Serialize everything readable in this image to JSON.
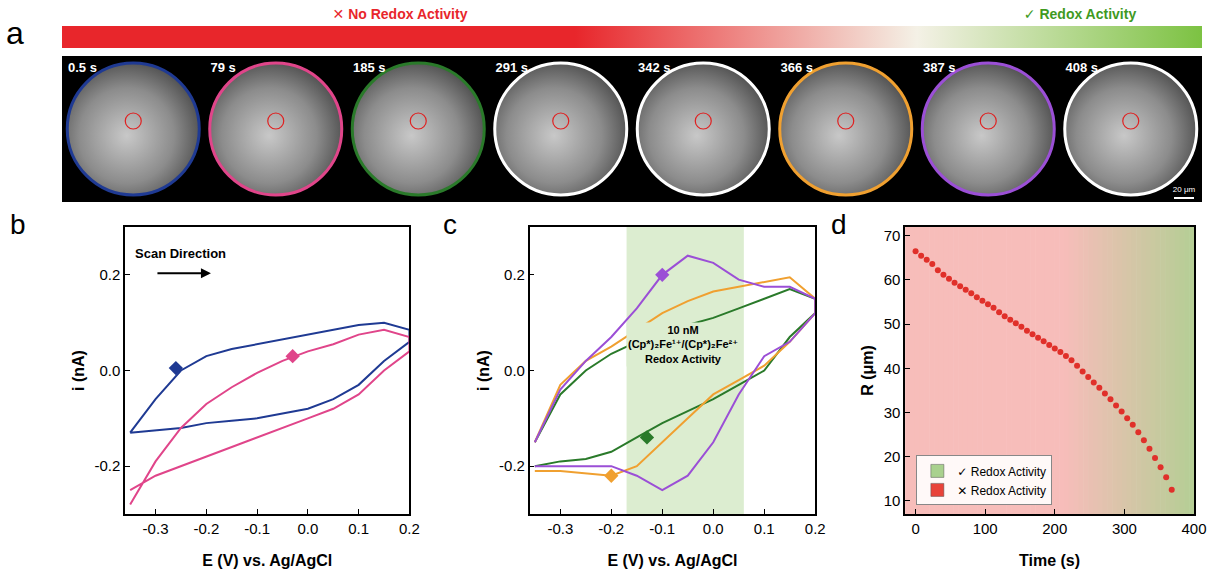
{
  "panel_a": {
    "letter": "a",
    "banner": {
      "left": "✕ No Redox Activity",
      "right": "✓ Redox Activity",
      "left_color": "#e8262b",
      "right_color": "#7cc242"
    },
    "frames": [
      {
        "time": "0.5 s",
        "color": "#1f3a93"
      },
      {
        "time": "79 s",
        "color": "#e0458a"
      },
      {
        "time": "185 s",
        "color": "#2a7a2a"
      },
      {
        "time": "291 s",
        "color": "#ffffff"
      },
      {
        "time": "342 s",
        "color": "#ffffff"
      },
      {
        "time": "366 s",
        "color": "#f0a030"
      },
      {
        "time": "387 s",
        "color": "#9b4fd6"
      },
      {
        "time": "408 s",
        "color": "#ffffff"
      }
    ],
    "scale_bar": "20 μm"
  },
  "chart_data": [
    {
      "letter": "b",
      "type": "line",
      "x_label": "E (V) vs. Ag/AgCl",
      "y_label": "i (nA)",
      "xlim": [
        -0.36,
        0.2
      ],
      "xticks": [
        -0.3,
        -0.2,
        -0.1,
        {
          "value": 0,
          "label": "0.0"
        },
        0.1,
        0.2
      ],
      "ylim": [
        -0.3,
        0.3
      ],
      "yticks": [
        -0.2,
        {
          "value": 0,
          "label": "0.0"
        },
        0.2
      ],
      "annotations": [
        {
          "text": "Scan Direction",
          "x": -0.25,
          "y": 0.245
        }
      ],
      "series": [
        {
          "color": "#1f3a93",
          "marker": "diamond",
          "marker_point": [
            -0.26,
            0.005
          ],
          "x": [
            -0.35,
            -0.3,
            -0.25,
            -0.2,
            -0.15,
            -0.1,
            -0.05,
            0,
            0.05,
            0.1,
            0.15,
            0.2,
            0.2,
            0.15,
            0.1,
            0.05,
            0,
            -0.05,
            -0.1,
            -0.15,
            -0.2,
            -0.25,
            -0.3,
            -0.35
          ],
          "values": [
            -0.13,
            -0.06,
            0.0,
            0.03,
            0.045,
            0.055,
            0.065,
            0.075,
            0.085,
            0.095,
            0.1,
            0.085,
            0.06,
            0.02,
            -0.03,
            -0.06,
            -0.08,
            -0.09,
            -0.1,
            -0.105,
            -0.11,
            -0.12,
            -0.125,
            -0.13
          ]
        },
        {
          "color": "#e0458a",
          "marker": "diamond",
          "marker_point": [
            -0.03,
            0.03
          ],
          "x": [
            -0.35,
            -0.3,
            -0.25,
            -0.2,
            -0.15,
            -0.1,
            -0.05,
            0,
            0.05,
            0.1,
            0.15,
            0.2,
            0.2,
            0.15,
            0.1,
            0.05,
            0,
            -0.05,
            -0.1,
            -0.15,
            -0.2,
            -0.25,
            -0.3,
            -0.35
          ],
          "values": [
            -0.28,
            -0.19,
            -0.12,
            -0.07,
            -0.035,
            -0.005,
            0.02,
            0.04,
            0.055,
            0.075,
            0.085,
            0.07,
            0.04,
            0.0,
            -0.05,
            -0.08,
            -0.1,
            -0.12,
            -0.14,
            -0.16,
            -0.18,
            -0.2,
            -0.22,
            -0.25
          ]
        }
      ]
    },
    {
      "letter": "c",
      "type": "line",
      "x_label": "E (V) vs. Ag/AgCl",
      "y_label": "i (nA)",
      "xlim": [
        -0.36,
        0.2
      ],
      "xticks": [
        -0.3,
        -0.2,
        -0.1,
        {
          "value": 0,
          "label": "0.0"
        },
        0.1,
        0.2
      ],
      "ylim": [
        -0.3,
        0.3
      ],
      "yticks": [
        -0.2,
        {
          "value": 0,
          "label": "0.0"
        },
        0.2
      ],
      "highlight": {
        "x": [
          -0.17,
          0.06
        ],
        "color": "#dcedd0"
      },
      "annotations": [
        {
          "text": [
            "10 nM",
            "(Cp*)₂Fe¹⁺/(Cp*)₂Fe²⁺",
            "Redox Activity"
          ],
          "x": -0.06,
          "y": 0.055
        }
      ],
      "series": [
        {
          "color": "#2a7a2a",
          "marker": "diamond",
          "marker_point": [
            -0.13,
            -0.14
          ],
          "x": [
            -0.35,
            -0.3,
            -0.25,
            -0.2,
            -0.15,
            -0.1,
            -0.05,
            0,
            0.05,
            0.1,
            0.15,
            0.2,
            0.2,
            0.15,
            0.1,
            0.05,
            0,
            -0.05,
            -0.1,
            -0.15,
            -0.2,
            -0.25,
            -0.3,
            -0.35
          ],
          "values": [
            -0.15,
            -0.05,
            0.0,
            0.035,
            0.06,
            0.08,
            0.095,
            0.11,
            0.13,
            0.15,
            0.17,
            0.15,
            0.12,
            0.07,
            0.0,
            -0.03,
            -0.06,
            -0.085,
            -0.11,
            -0.14,
            -0.17,
            -0.185,
            -0.19,
            -0.2
          ]
        },
        {
          "color": "#f0a030",
          "marker": "diamond",
          "marker_point": [
            -0.2,
            -0.22
          ],
          "x": [
            -0.35,
            -0.3,
            -0.25,
            -0.2,
            -0.15,
            -0.1,
            -0.05,
            0,
            0.05,
            0.1,
            0.15,
            0.2,
            0.2,
            0.15,
            0.1,
            0.05,
            0,
            -0.05,
            -0.1,
            -0.15,
            -0.2,
            -0.25,
            -0.3,
            -0.35
          ],
          "values": [
            -0.15,
            -0.03,
            0.02,
            0.05,
            0.085,
            0.12,
            0.145,
            0.165,
            0.175,
            0.185,
            0.195,
            0.15,
            0.12,
            0.06,
            0.01,
            -0.02,
            -0.05,
            -0.1,
            -0.15,
            -0.2,
            -0.22,
            -0.215,
            -0.21,
            -0.21
          ]
        },
        {
          "color": "#9b4fd6",
          "marker": "diamond",
          "marker_point": [
            -0.1,
            0.2
          ],
          "x": [
            -0.35,
            -0.3,
            -0.25,
            -0.2,
            -0.15,
            -0.1,
            -0.05,
            0,
            0.05,
            0.1,
            0.15,
            0.2,
            0.2,
            0.15,
            0.1,
            0.05,
            0,
            -0.05,
            -0.1,
            -0.15,
            -0.2,
            -0.25,
            -0.3,
            -0.35
          ],
          "values": [
            -0.15,
            -0.04,
            0.02,
            0.07,
            0.13,
            0.2,
            0.24,
            0.225,
            0.19,
            0.175,
            0.175,
            0.15,
            0.12,
            0.06,
            0.03,
            -0.05,
            -0.15,
            -0.22,
            -0.25,
            -0.22,
            -0.2,
            -0.2,
            -0.2,
            -0.2
          ]
        }
      ]
    },
    {
      "letter": "d",
      "type": "scatter",
      "x_label": "Time (s)",
      "y_label": "R (μm)",
      "xlim": [
        -15,
        400
      ],
      "xticks": [
        0,
        100,
        200,
        300,
        400
      ],
      "ylim": [
        7,
        72
      ],
      "yticks": [
        10,
        20,
        30,
        40,
        50,
        60,
        70
      ],
      "legend": "lower left",
      "regions": [
        {
          "name": "✓ Redox Activity",
          "color": "#a9d18e"
        },
        {
          "name": "✕ Redox Activity",
          "color": "#e8433a"
        }
      ],
      "series": [
        {
          "color": "#e0302a",
          "marker": "circle",
          "x": [
            0,
            8,
            16,
            24,
            32,
            40,
            48,
            56,
            64,
            72,
            80,
            88,
            96,
            104,
            112,
            120,
            128,
            136,
            144,
            152,
            160,
            168,
            176,
            184,
            192,
            200,
            208,
            216,
            224,
            232,
            240,
            248,
            256,
            264,
            272,
            280,
            288,
            296,
            304,
            312,
            320,
            328,
            336,
            344,
            352,
            360,
            368
          ],
          "values": [
            66.5,
            65.5,
            64.6,
            63.6,
            62.2,
            61.2,
            60.3,
            59.4,
            58.6,
            57.8,
            57.0,
            56.1,
            55.3,
            54.5,
            53.7,
            52.7,
            51.8,
            51.0,
            50.2,
            49.4,
            48.5,
            47.7,
            46.9,
            46.1,
            45.3,
            44.5,
            43.7,
            42.8,
            41.8,
            40.6,
            39.3,
            38.0,
            36.8,
            35.6,
            34.3,
            33.0,
            31.6,
            30.2,
            28.7,
            27.2,
            25.5,
            23.7,
            21.8,
            19.7,
            17.6,
            15.3,
            12.5
          ]
        }
      ]
    }
  ]
}
